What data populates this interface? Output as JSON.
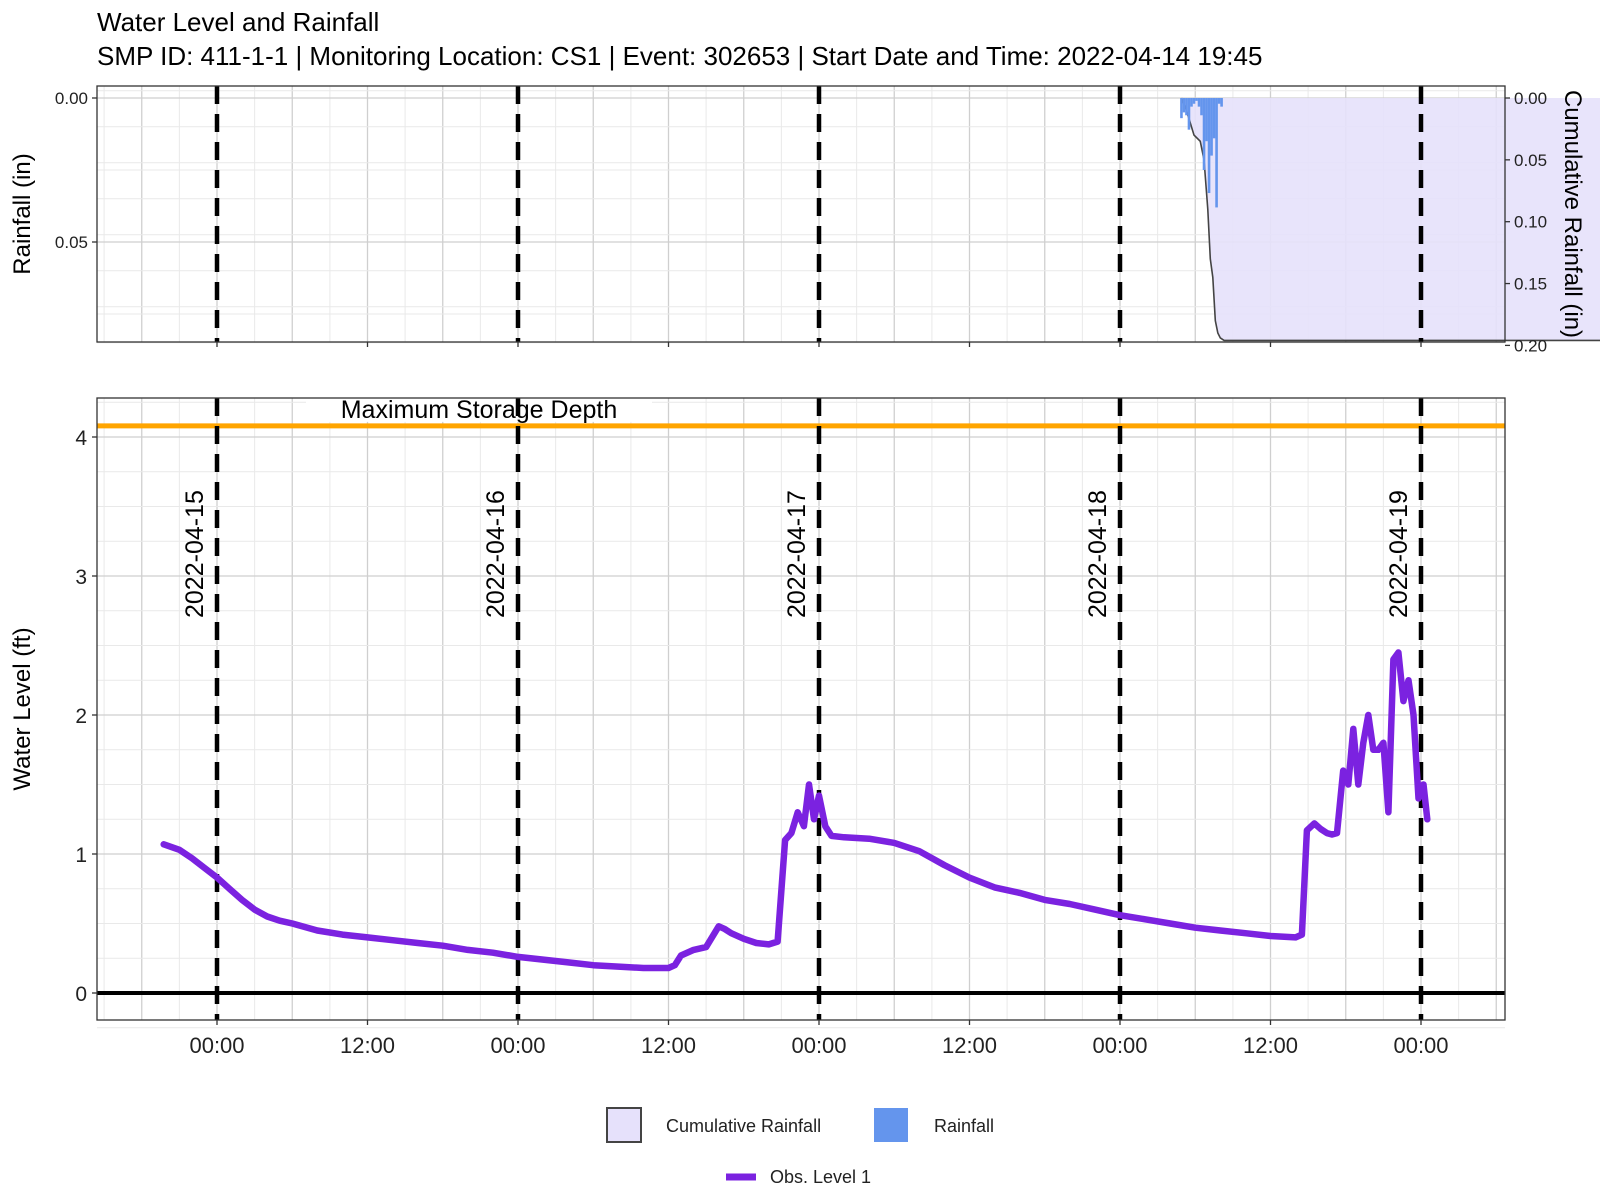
{
  "chart_data": {
    "type": "line",
    "title": "Water Level and Rainfall",
    "subtitle": "SMP ID: 411-1-1 | Monitoring Location: CS1 | Event: 302653 | Start Date and Time: 2022-04-14 19:45",
    "x_ticks": [
      "00:00",
      "12:00",
      "00:00",
      "12:00",
      "00:00",
      "12:00",
      "00:00",
      "12:00",
      "00:00"
    ],
    "date_markers": [
      "2022-04-15",
      "2022-04-16",
      "2022-04-17",
      "2022-04-18",
      "2022-04-19"
    ],
    "rainfall_panel": {
      "ylabel_left": "Rainfall (in)",
      "ylabel_right": "Cumulative Rainfall (in)",
      "yticks_left": [
        "0.00",
        "0.05"
      ],
      "yticks_right": [
        "0.00",
        "0.05",
        "0.10",
        "0.15",
        "0.20"
      ],
      "rainfall_bars": {
        "name": "Rainfall",
        "x_hours": [
          76.9,
          77.1,
          77.3,
          77.5,
          77.7,
          77.9,
          78.1,
          78.3,
          78.5,
          78.7,
          78.9,
          79.1,
          79.3,
          79.5,
          79.7,
          79.9,
          80.1
        ],
        "values_in": [
          0.007,
          0.005,
          0.006,
          0.011,
          0.003,
          0.002,
          0.001,
          0.003,
          0.006,
          0.025,
          0.015,
          0.033,
          0.02,
          0.014,
          0.038,
          0.002,
          0.003
        ]
      },
      "cumulative": {
        "name": "Cumulative Rainfall",
        "x_hours": [
          76.9,
          77.3,
          77.6,
          77.9,
          78.4,
          78.7,
          79.0,
          79.2,
          79.4,
          79.6,
          79.8,
          80.0,
          80.3,
          82.0,
          120.0,
          144.0
        ],
        "values_in": [
          0.0,
          0.01,
          0.02,
          0.03,
          0.035,
          0.05,
          0.09,
          0.13,
          0.145,
          0.18,
          0.19,
          0.194,
          0.196,
          0.196,
          0.196,
          0.196
        ]
      }
    },
    "water_panel": {
      "ylabel": "Water Level (ft)",
      "yticks": [
        0,
        1,
        2,
        3,
        4
      ],
      "ylim": [
        -0.2,
        4.25
      ],
      "max_storage_depth_ft": 4.08,
      "max_storage_label": "Maximum Storage Depth",
      "series": [
        {
          "name": "Obs. Level 1",
          "color": "#7b22e0",
          "x_hours": [
            -4.25,
            -3,
            -2,
            -1,
            0,
            1,
            2,
            3,
            4,
            5,
            6,
            8,
            10,
            12,
            14,
            16,
            18,
            20,
            22,
            24,
            26,
            28,
            30,
            32,
            34,
            36,
            36.5,
            37,
            38,
            39,
            40,
            40.5,
            41,
            42,
            43,
            44,
            44.7,
            45.3,
            45.8,
            46.3,
            46.8,
            47.2,
            47.6,
            48.0,
            48.5,
            49,
            50,
            52,
            54,
            56,
            58,
            60,
            62,
            64,
            66,
            68,
            70,
            72,
            74,
            76,
            78,
            80,
            82,
            84,
            86,
            86.5,
            86.9,
            87.5,
            88.0,
            88.5,
            88.9,
            89.3,
            89.8,
            90.2,
            90.6,
            91.0,
            91.4,
            91.8,
            92.2,
            92.6,
            93.0,
            93.4,
            93.8,
            94.2,
            94.6,
            95.0,
            95.4,
            95.8,
            96.2,
            96.5
          ],
          "values": [
            1.07,
            1.03,
            0.97,
            0.9,
            0.83,
            0.75,
            0.67,
            0.6,
            0.55,
            0.52,
            0.5,
            0.45,
            0.42,
            0.4,
            0.38,
            0.36,
            0.34,
            0.31,
            0.29,
            0.26,
            0.24,
            0.22,
            0.2,
            0.19,
            0.18,
            0.18,
            0.2,
            0.27,
            0.31,
            0.33,
            0.48,
            0.46,
            0.43,
            0.39,
            0.36,
            0.35,
            0.37,
            1.1,
            1.15,
            1.3,
            1.2,
            1.5,
            1.25,
            1.42,
            1.2,
            1.13,
            1.12,
            1.11,
            1.08,
            1.02,
            0.92,
            0.83,
            0.76,
            0.72,
            0.67,
            0.64,
            0.6,
            0.56,
            0.53,
            0.5,
            0.47,
            0.45,
            0.43,
            0.41,
            0.4,
            0.42,
            1.17,
            1.22,
            1.18,
            1.15,
            1.14,
            1.15,
            1.6,
            1.5,
            1.9,
            1.5,
            1.8,
            2.0,
            1.75,
            1.75,
            1.8,
            1.3,
            2.4,
            2.45,
            2.1,
            2.25,
            2.0,
            1.4,
            1.5,
            1.25
          ]
        }
      ]
    },
    "legend": {
      "cumulative_label": "Cumulative Rainfall",
      "rainfall_label": "Rainfall",
      "level_label": "Obs. Level 1"
    },
    "colors": {
      "rainfall": "#6495ed",
      "cumulative_fill": "#e6e1fb",
      "level": "#7b22e0",
      "max_storage": "#ffa500"
    }
  }
}
